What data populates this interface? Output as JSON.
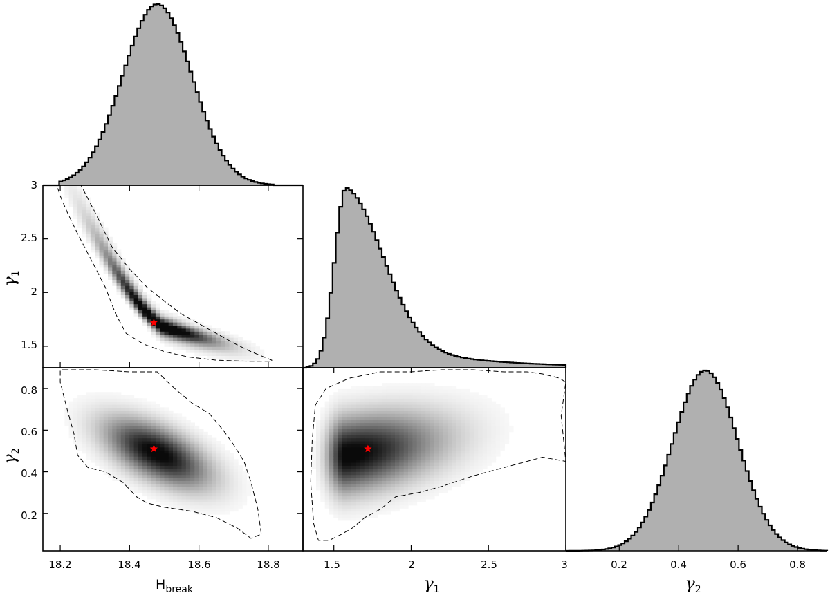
{
  "chart_data": {
    "type": "corner",
    "parameters": [
      {
        "key": "hbreak",
        "label": "H",
        "label_sub": "break",
        "range": [
          18.15,
          18.9
        ],
        "ticks": [
          "18.2",
          "18.4",
          "18.6",
          "18.8"
        ]
      },
      {
        "key": "g1",
        "label": "γ",
        "label_sub": "1",
        "range": [
          1.3,
          3.0
        ],
        "ticks": [
          "1.5",
          "2",
          "2.5",
          "3"
        ]
      },
      {
        "key": "g2",
        "label": "γ",
        "label_sub": "2",
        "range": [
          0.02,
          0.9
        ],
        "ticks": [
          "0.2",
          "0.4",
          "0.6",
          "0.8"
        ]
      }
    ],
    "best_fit": {
      "hbreak": 18.47,
      "g1": 1.72,
      "g2": 0.51,
      "marker": "red star"
    },
    "marginals": {
      "hbreak": {
        "shape": "roughly gaussian",
        "peak_at": 18.48,
        "sd": 0.1,
        "support": [
          18.2,
          18.82
        ]
      },
      "g1": {
        "shape": "right-skewed",
        "peak_at": 1.58,
        "support": [
          1.33,
          3.0
        ]
      },
      "g2": {
        "shape": "roughly gaussian",
        "peak_at": 0.49,
        "sd": 0.11,
        "support": [
          0.02,
          0.9
        ]
      }
    },
    "panels": [
      {
        "x": "hbreak",
        "y": "g1",
        "type": "2d histogram",
        "contour_x": [
          18.23,
          18.26,
          18.3,
          18.35,
          18.4,
          18.45,
          18.5,
          18.55,
          18.6,
          18.65,
          18.7,
          18.75,
          18.81,
          18.81,
          18.74,
          18.65,
          18.57,
          18.5,
          18.44,
          18.39,
          18.36,
          18.33,
          18.29,
          18.25,
          18.22,
          18.2,
          18.19,
          18.21
        ],
        "contour_y": [
          3.0,
          3.0,
          2.75,
          2.42,
          2.22,
          2.05,
          1.92,
          1.8,
          1.71,
          1.62,
          1.53,
          1.45,
          1.37,
          1.36,
          1.36,
          1.37,
          1.4,
          1.45,
          1.52,
          1.62,
          1.8,
          2.05,
          2.3,
          2.55,
          2.75,
          2.9,
          3.0,
          3.0
        ]
      },
      {
        "x": "hbreak",
        "y": "g2",
        "type": "2d histogram",
        "contour_x": [
          18.21,
          18.3,
          18.4,
          18.48,
          18.53,
          18.58,
          18.63,
          18.67,
          18.7,
          18.73,
          18.75,
          18.77,
          18.78,
          18.75,
          18.71,
          18.65,
          18.58,
          18.5,
          18.45,
          18.42,
          18.38,
          18.33,
          18.28,
          18.25,
          18.24,
          18.22,
          18.2,
          18.2
        ],
        "contour_y": [
          0.89,
          0.89,
          0.88,
          0.88,
          0.8,
          0.73,
          0.68,
          0.6,
          0.53,
          0.45,
          0.35,
          0.22,
          0.1,
          0.08,
          0.13,
          0.18,
          0.21,
          0.23,
          0.25,
          0.28,
          0.35,
          0.4,
          0.42,
          0.48,
          0.58,
          0.7,
          0.83,
          0.89
        ]
      },
      {
        "x": "g1",
        "y": "g2",
        "type": "2d histogram",
        "contour_x": [
          1.38,
          1.45,
          1.6,
          1.8,
          2.0,
          2.2,
          2.4,
          2.6,
          2.75,
          2.85,
          2.96,
          3.0,
          2.97,
          3.0,
          2.85,
          2.6,
          2.4,
          2.2,
          2.05,
          1.9,
          1.8,
          1.7,
          1.62,
          1.55,
          1.47,
          1.4,
          1.37,
          1.35,
          1.36
        ],
        "contour_y": [
          0.72,
          0.8,
          0.85,
          0.88,
          0.88,
          0.89,
          0.89,
          0.88,
          0.88,
          0.87,
          0.85,
          0.83,
          0.67,
          0.45,
          0.47,
          0.42,
          0.38,
          0.33,
          0.3,
          0.28,
          0.22,
          0.18,
          0.13,
          0.1,
          0.07,
          0.07,
          0.15,
          0.35,
          0.55
        ]
      }
    ],
    "colors": {
      "hist_fill": "#b0b0b0",
      "hist_edge": "#000000",
      "contour": "#000000",
      "star": "#ff0000"
    },
    "contour_style": "dashed"
  }
}
